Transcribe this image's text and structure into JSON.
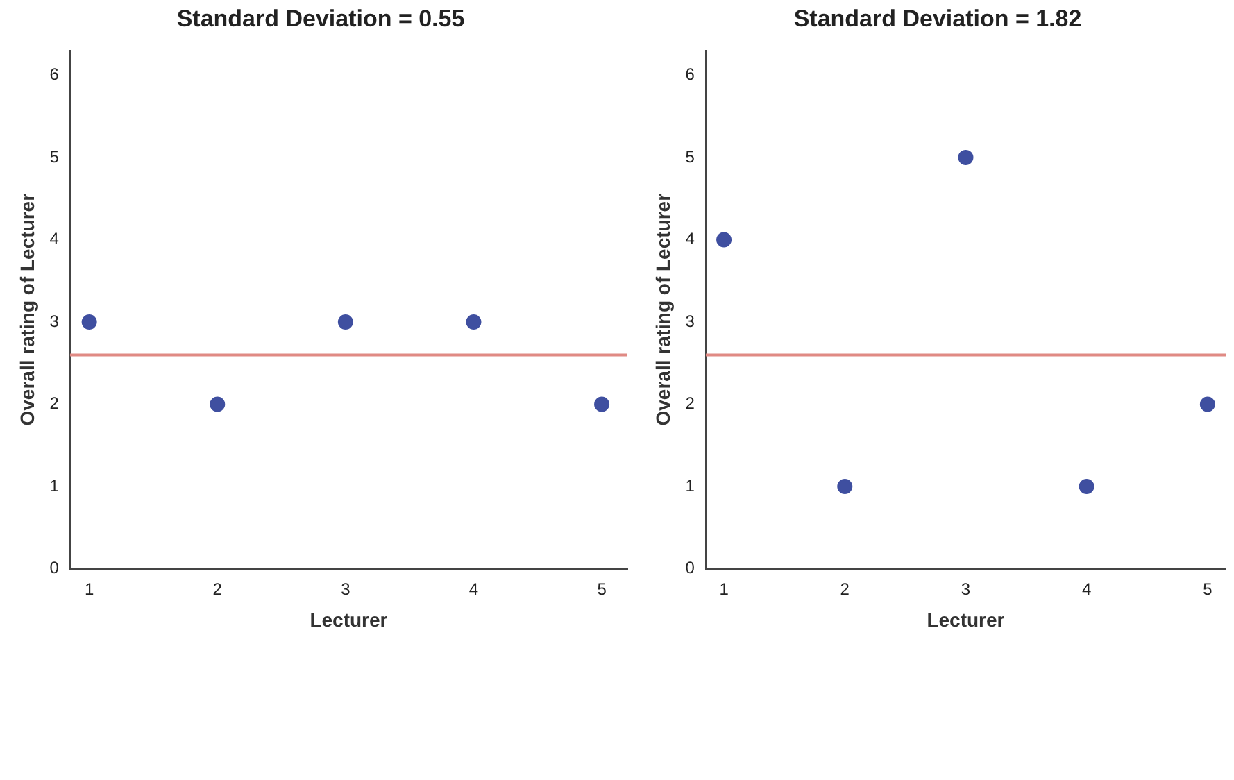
{
  "chart_data": [
    {
      "type": "scatter",
      "title": "Standard Deviation = 0.55",
      "xlabel": "Lecturer",
      "ylabel": "Overall rating of Lecturer",
      "x": [
        1,
        2,
        3,
        4,
        5
      ],
      "series": [
        {
          "color": "#3f4fa0",
          "values": [
            3,
            2,
            3,
            3,
            2
          ]
        }
      ],
      "xlim": [
        0.85,
        5.2
      ],
      "xticks": [
        1,
        2,
        3,
        4,
        5
      ],
      "ylim": [
        0,
        6.3
      ],
      "yticks": [
        0,
        1,
        2,
        3,
        4,
        5,
        6
      ],
      "grid": false,
      "legend": false,
      "marker": "circle",
      "ref_lines": [
        {
          "axis": "y",
          "value": 2.6,
          "color": "#e08a84"
        }
      ]
    },
    {
      "type": "scatter",
      "title": "Standard Deviation = 1.82",
      "xlabel": "Lecturer",
      "ylabel": "Overall rating of Lecturer",
      "x": [
        1,
        2,
        3,
        4,
        5
      ],
      "series": [
        {
          "color": "#3f4fa0",
          "values": [
            4,
            1,
            5,
            1,
            2
          ]
        }
      ],
      "xlim": [
        0.85,
        5.15
      ],
      "xticks": [
        1,
        2,
        3,
        4,
        5
      ],
      "ylim": [
        0,
        6.3
      ],
      "yticks": [
        0,
        1,
        2,
        3,
        4,
        5,
        6
      ],
      "grid": false,
      "legend": false,
      "marker": "circle",
      "ref_lines": [
        {
          "axis": "y",
          "value": 2.6,
          "color": "#e08a84"
        }
      ]
    }
  ]
}
